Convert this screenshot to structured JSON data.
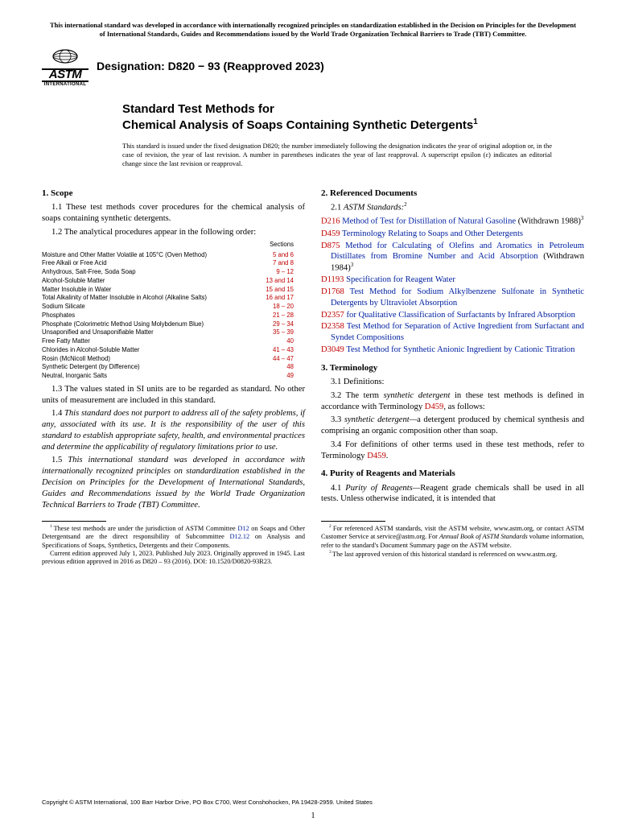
{
  "top_notice": "This international standard was developed in accordance with internationally recognized principles on standardization established in the Decision on Principles for the Development of International Standards, Guides and Recommendations issued by the World Trade Organization Technical Barriers to Trade (TBT) Committee.",
  "logo": {
    "astm": "ASTM",
    "intl": "INTERNATIONAL"
  },
  "designation": "Designation: D820 − 93 (Reapproved 2023)",
  "title_l1": "Standard Test Methods for",
  "title_l2": "Chemical Analysis of Soaps Containing Synthetic Detergents",
  "title_sup": "1",
  "issuance": "This standard is issued under the fixed designation D820; the number immediately following the designation indicates the year of original adoption or, in the case of revision, the year of last revision. A number in parentheses indicates the year of last reapproval. A superscript epsilon (ε) indicates an editorial change since the last revision or reapproval.",
  "s1_head": "1. Scope",
  "s1_1": "1.1 These test methods cover procedures for the chemical analysis of soaps containing synthetic detergents.",
  "s1_2": "1.2 The analytical procedures appear in the following order:",
  "proc_header": "Sections",
  "procedures": [
    {
      "name": "Moisture and Other Matter Volatile at 105°C (Oven Method)",
      "sec": "5 and 6"
    },
    {
      "name": "Free Alkali or Free Acid",
      "sec": "7 and 8"
    },
    {
      "name": "Anhydrous, Salt-Free, Soda Soap",
      "sec": "9 – 12"
    },
    {
      "name": "Alcohol-Soluble Matter",
      "sec": "13 and 14"
    },
    {
      "name": "Matter Insoluble in Water",
      "sec": "15 and 15"
    },
    {
      "name": "Total Alkalinity of Matter Insoluble in Alcohol (Alkaline Salts)",
      "sec": "16 and 17"
    },
    {
      "name": "Sodium Silicate",
      "sec": "18 – 20"
    },
    {
      "name": "Phosphates",
      "sec": "21 – 28"
    },
    {
      "name": "Phosphate (Colorimetric Method Using Molybdenum Blue)",
      "sec": "29 – 34"
    },
    {
      "name": "Unsaponified and Unsaponifiable Matter",
      "sec": "35 – 39"
    },
    {
      "name": "Free Fatty Matter",
      "sec": "40"
    },
    {
      "name": "Chlorides in Alcohol-Soluble Matter",
      "sec": "41 – 43"
    },
    {
      "name": "Rosin (McNicoll Method)",
      "sec": "44 – 47"
    },
    {
      "name": "Synthetic Detergent (by Difference)",
      "sec": "48"
    },
    {
      "name": "Neutral, Inorganic Salts",
      "sec": "49"
    }
  ],
  "s1_3": "1.3 The values stated in SI units are to be regarded as standard. No other units of measurement are included in this standard.",
  "s1_4": "1.4 This standard does not purport to address all of the safety problems, if any, associated with its use. It is the responsibility of the user of this standard to establish appropriate safety, health, and environmental practices and determine the applicability of regulatory limitations prior to use.",
  "s1_5": "1.5 This international standard was developed in accordance with internationally recognized principles on standardization established in the Decision on Principles for the Development of International Standards, Guides and Recommendations issued by the World Trade Organization Technical Barriers to Trade (TBT) Committee.",
  "s2_head": "2. Referenced Documents",
  "s2_1_a": "2.1 ",
  "s2_1_b": "ASTM Standards:",
  "s2_1_sup": "2",
  "refs": [
    {
      "code": "D216",
      "text": "Method of Test for Distillation of Natural Gasoline",
      "tail": " (Withdrawn 1988)",
      "sup": "3"
    },
    {
      "code": "D459",
      "text": "Terminology Relating to Soaps and Other Detergents",
      "tail": "",
      "sup": ""
    },
    {
      "code": "D875",
      "text": "Method for Calculating of Olefins and Aromatics in Petroleum Distillates from Bromine Number and Acid Absorption",
      "tail": " (Withdrawn 1984)",
      "sup": "3"
    },
    {
      "code": "D1193",
      "text": "Specification for Reagent Water",
      "tail": "",
      "sup": ""
    },
    {
      "code": "D1768",
      "text": "Test Method for Sodium Alkylbenzene Sulfonate in Synthetic Detergents by Ultraviolet Absorption",
      "tail": "",
      "sup": ""
    },
    {
      "code": "D2357",
      "text": "for Qualitative Classification of Surfactants by Infrared Absorption",
      "tail": "",
      "sup": ""
    },
    {
      "code": "D2358",
      "text": "Test Method for Separation of Active Ingredient from Surfactant and Syndet Compositions",
      "tail": "",
      "sup": ""
    },
    {
      "code": "D3049",
      "text": "Test Method for Synthetic Anionic Ingredient by Cationic Titration",
      "tail": "",
      "sup": ""
    }
  ],
  "s3_head": "3. Terminology",
  "s3_1": "3.1 Definitions:",
  "s3_2a": "3.2 The term ",
  "s3_2b": "synthetic detergent",
  "s3_2c": " in these test methods is defined in accordance with Terminology ",
  "s3_2d": "D459",
  "s3_2e": ", as follows:",
  "s3_3a": "3.3 ",
  "s3_3b": "synthetic detergent—",
  "s3_3c": "a detergent produced by chemical synthesis and comprising an organic composition other than soap.",
  "s3_4a": "3.4 For definitions of other terms used in these test methods, refer to Terminology ",
  "s3_4b": "D459",
  "s3_4c": ".",
  "s4_head": "4. Purity of Reagents and Materials",
  "s4_1a": "4.1 ",
  "s4_1b": "Purity of Reagents—",
  "s4_1c": "Reagent grade chemicals shall be used in all tests. Unless otherwise indicated, it is intended that",
  "fn1a": "These test methods are under the jurisdiction of ASTM Committee ",
  "fn1b": "D12",
  "fn1c": " on Soaps and Other Detergentsand are the direct responsibility of Subcommittee ",
  "fn1d": "D12.12",
  "fn1e": " on Analysis and Specifications of Soaps, Synthetics, Detergents and their Components.",
  "fn1f": "Current edition approved July 1, 2023. Published July 2023. Originally approved in 1945. Last previous edition approved in 2016 as D820 – 93 (2016). DOI: 10.1520/D0820-93R23.",
  "fn2a": "For referenced ASTM standards, visit the ASTM website, www.astm.org, or contact ASTM Customer Service at service@astm.org. For ",
  "fn2b": "Annual Book of ASTM Standards",
  "fn2c": " volume information, refer to the standard's Document Summary page on the ASTM website.",
  "fn3": "The last approved version of this historical standard is referenced on www.astm.org.",
  "copyright": "Copyright © ASTM International, 100 Barr Harbor Drive, PO Box C700, West Conshohocken, PA 19428-2959. United States",
  "pagenum": "1"
}
